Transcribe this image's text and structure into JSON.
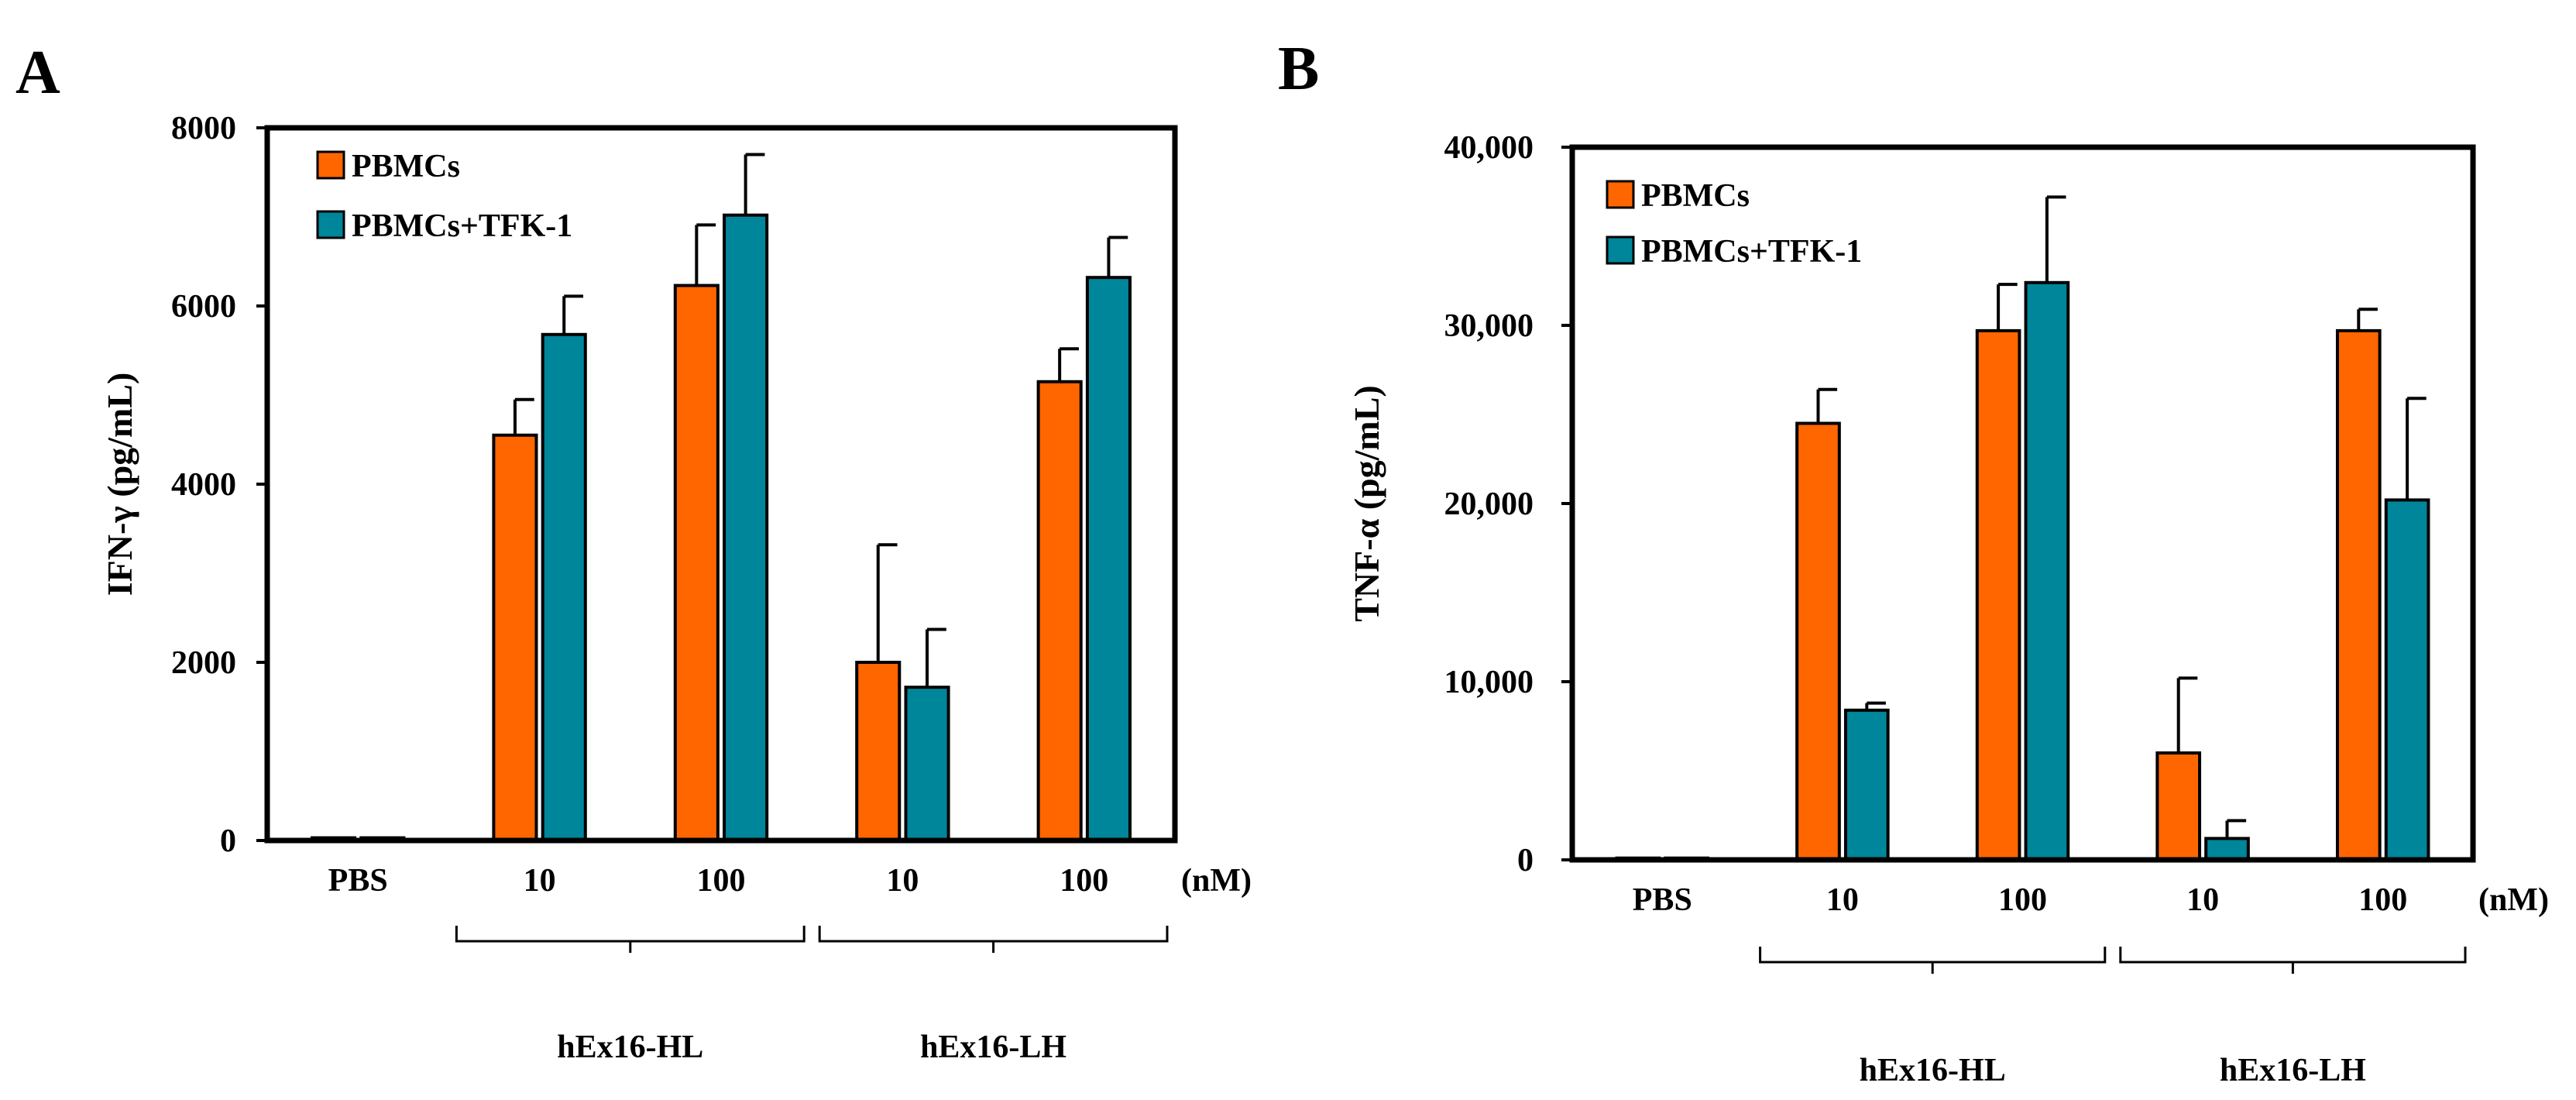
{
  "colors": {
    "pbmcs": "#FF6600",
    "pbmcs_tfk1": "#00869A",
    "axis": "#000000"
  },
  "chart_data": [
    {
      "panel": "A",
      "type": "bar",
      "ylabel": "IFN-γ (pg/mL)",
      "ylim": [
        0,
        8000
      ],
      "yticks": [
        0,
        2000,
        4000,
        6000,
        8000
      ],
      "ytick_labels": [
        "0",
        "2000",
        "4000",
        "6000",
        "8000"
      ],
      "categories": [
        "PBS",
        "10",
        "100",
        "10",
        "100"
      ],
      "unit_label": "(nM)",
      "groups": [
        {
          "label": "hEx16-HL",
          "from": 1,
          "to": 2
        },
        {
          "label": "hEx16-LH",
          "from": 3,
          "to": 4
        }
      ],
      "legend": {
        "position": "top-left"
      },
      "series": [
        {
          "name": "PBMCs",
          "values": [
            30,
            4550,
            6230,
            2000,
            5150
          ],
          "errors": [
            0,
            400,
            680,
            1320,
            370
          ]
        },
        {
          "name": "PBMCs+TFK-1",
          "values": [
            30,
            5680,
            7020,
            1720,
            6320
          ],
          "errors": [
            0,
            430,
            680,
            650,
            450
          ]
        }
      ]
    },
    {
      "panel": "B",
      "type": "bar",
      "ylabel": "TNF-α (pg/mL)",
      "ylim": [
        0,
        40000
      ],
      "yticks": [
        0,
        10000,
        20000,
        30000,
        40000
      ],
      "ytick_labels": [
        "0",
        "10,000",
        "20,000",
        "30,000",
        "40,000"
      ],
      "categories": [
        "PBS",
        "10",
        "100",
        "10",
        "100"
      ],
      "unit_label": "(nM)",
      "groups": [
        {
          "label": "hEx16-HL",
          "from": 1,
          "to": 2
        },
        {
          "label": "hEx16-LH",
          "from": 3,
          "to": 4
        }
      ],
      "legend": {
        "position": "top-left"
      },
      "series": [
        {
          "name": "PBMCs",
          "values": [
            100,
            24500,
            29700,
            6000,
            29700
          ],
          "errors": [
            0,
            1900,
            2600,
            4200,
            1200
          ]
        },
        {
          "name": "PBMCs+TFK-1",
          "values": [
            100,
            8400,
            32400,
            1200,
            20200
          ],
          "errors": [
            0,
            400,
            4800,
            1000,
            5700
          ]
        }
      ]
    }
  ]
}
